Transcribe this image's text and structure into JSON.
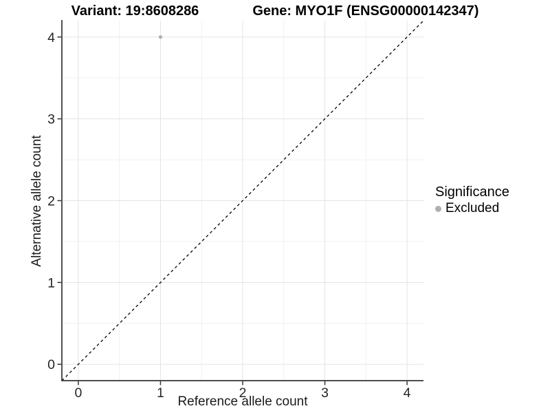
{
  "title": {
    "variant_label": "Variant: 19:8608286",
    "gene_label": "Gene: MYO1F (ENSG00000142347)"
  },
  "axes": {
    "x_label": "Reference allele count",
    "y_label": "Alternative allele count",
    "x_tick_labels": [
      "0",
      "1",
      "2",
      "3",
      "4"
    ],
    "y_tick_labels": [
      "0",
      "1",
      "2",
      "3",
      "4"
    ]
  },
  "legend": {
    "title": "Significance",
    "items": [
      {
        "label": "Excluded",
        "color": "#b0b0b0"
      }
    ]
  },
  "colors": {
    "background": "#ffffff",
    "axis_line": "#333333",
    "tick_text": "#262626",
    "grid_major": "#e3e3e3",
    "grid_minor": "#f0f0f0",
    "reference_line": "#000000",
    "excluded_point": "#b0b0b0"
  },
  "chart_data": {
    "type": "scatter",
    "title": "Variant: 19:8608286    Gene: MYO1F (ENSG00000142347)",
    "xlabel": "Reference allele count",
    "ylabel": "Alternative allele count",
    "xlim": [
      -0.2,
      4.2
    ],
    "ylim": [
      -0.2,
      4.2
    ],
    "x_ticks": [
      0,
      1,
      2,
      3,
      4
    ],
    "y_ticks": [
      0,
      1,
      2,
      3,
      4
    ],
    "x_minor_ticks": [
      0.5,
      1.5,
      2.5,
      3.5
    ],
    "y_minor_ticks": [
      0.5,
      1.5,
      2.5,
      3.5
    ],
    "grid": true,
    "legend_position": "right",
    "legend_title": "Significance",
    "series": [
      {
        "name": "Excluded",
        "color": "#b0b0b0",
        "points": [
          {
            "x": 1,
            "y": 4
          }
        ]
      }
    ],
    "reference_line": {
      "equation": "y = x",
      "style": "dashed",
      "color": "#000000"
    }
  }
}
